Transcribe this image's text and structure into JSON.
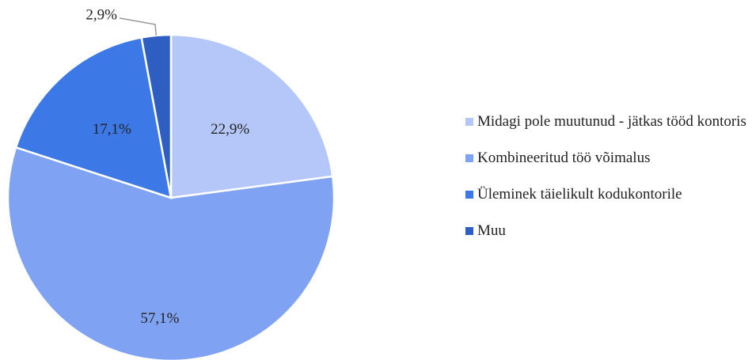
{
  "chart_data": {
    "type": "pie",
    "categories": [
      "Midagi pole muutunud - jätkas tööd kontoris",
      "Kombineeritud töö võimalus",
      "Üleminek täielikult kodukontorile",
      "Muu"
    ],
    "values": [
      22.9,
      57.1,
      17.1,
      2.9
    ],
    "value_labels": [
      "22,9%",
      "57,1%",
      "17,1%",
      "2,9%"
    ],
    "colors": [
      "#b4c7f8",
      "#7fa3f2",
      "#3d79e6",
      "#2f5ec2"
    ],
    "legend": "right"
  }
}
